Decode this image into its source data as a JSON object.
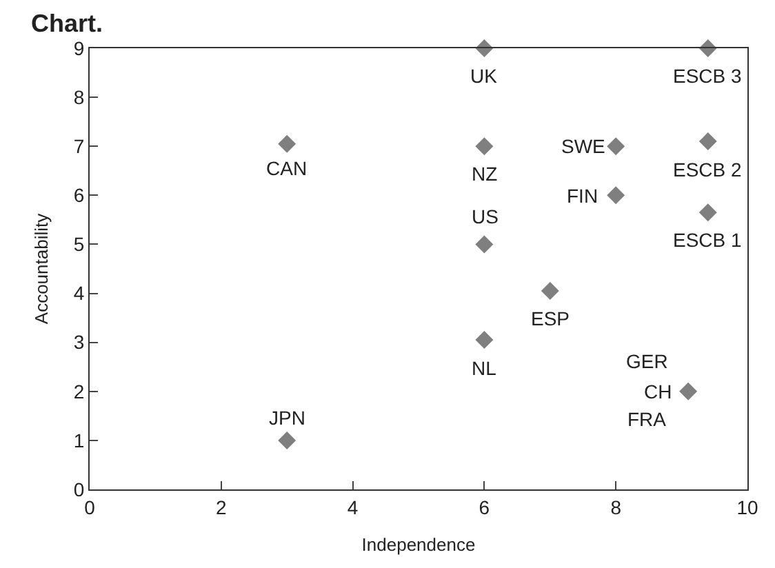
{
  "chart_data": {
    "type": "scatter",
    "title": "Chart.",
    "xlabel": "Independence",
    "ylabel": "Accountability",
    "x": [
      3,
      3,
      6,
      6,
      6,
      6,
      7,
      8,
      8,
      9.4,
      9.4,
      9.4,
      9.1
    ],
    "series": [
      {
        "color": "#7f7f7f",
        "values": [
          7.05,
          1,
          9,
          7,
          5,
          3.05,
          4.05,
          7,
          6,
          9,
          7.1,
          5.65,
          2
        ]
      }
    ],
    "marker": "diamond",
    "xlim": [
      0,
      10
    ],
    "xticks": [
      0,
      2,
      4,
      6,
      8,
      10
    ],
    "ylim": [
      0,
      9
    ],
    "yticks": [
      0,
      1,
      2,
      3,
      4,
      5,
      6,
      7,
      8,
      9
    ],
    "annotations": [
      {
        "text": "CAN",
        "x": 3,
        "y": 7.05
      },
      {
        "text": "JPN",
        "x": 3,
        "y": 1
      },
      {
        "text": "UK",
        "x": 6,
        "y": 9
      },
      {
        "text": "NZ",
        "x": 6,
        "y": 7
      },
      {
        "text": "US",
        "x": 6,
        "y": 5
      },
      {
        "text": "NL",
        "x": 6,
        "y": 3.05
      },
      {
        "text": "ESP",
        "x": 7,
        "y": 4.05
      },
      {
        "text": "SWE",
        "x": 8,
        "y": 7
      },
      {
        "text": "FIN",
        "x": 8,
        "y": 6
      },
      {
        "text": "ESCB 3",
        "x": 9.4,
        "y": 9
      },
      {
        "text": "ESCB 2",
        "x": 9.4,
        "y": 7.1
      },
      {
        "text": "ESCB 1",
        "x": 9.4,
        "y": 5.65
      },
      {
        "text": "GER",
        "x": 9.1,
        "y": 2
      },
      {
        "text": "CH",
        "x": 9.1,
        "y": 2
      },
      {
        "text": "FRA",
        "x": 9.1,
        "y": 2
      }
    ]
  }
}
